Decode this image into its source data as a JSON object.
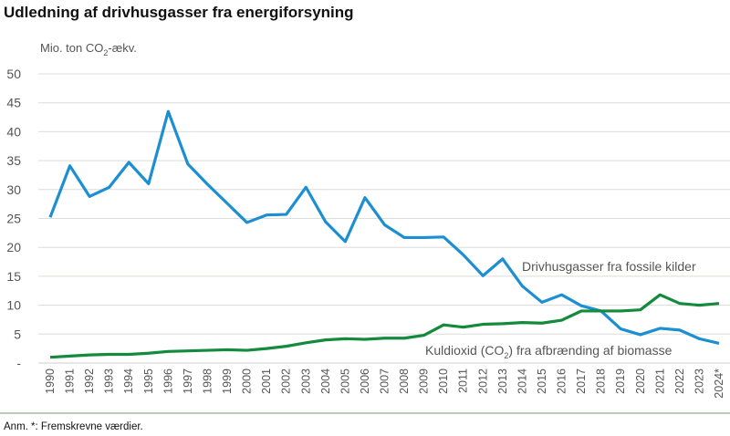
{
  "chart_data": {
    "type": "line",
    "title": "Udledning af drivhusgasser fra energiforsyning",
    "ylabel_main": "Mio. ton CO",
    "ylabel_sub": "2",
    "ylabel_tail": "-ækv.",
    "ylim": [
      0,
      50
    ],
    "yticks": [
      {
        "v": 0,
        "label": "-"
      },
      {
        "v": 5,
        "label": "5"
      },
      {
        "v": 10,
        "label": "10"
      },
      {
        "v": 15,
        "label": "15"
      },
      {
        "v": 20,
        "label": "20"
      },
      {
        "v": 25,
        "label": "25"
      },
      {
        "v": 30,
        "label": "30"
      },
      {
        "v": 35,
        "label": "35"
      },
      {
        "v": 40,
        "label": "40"
      },
      {
        "v": 45,
        "label": "45"
      },
      {
        "v": 50,
        "label": "50"
      }
    ],
    "grid": true,
    "categories": [
      "1990",
      "1991",
      "1992",
      "1993",
      "1994",
      "1995",
      "1996",
      "1997",
      "1998",
      "1999",
      "2000",
      "2001",
      "2002",
      "2003",
      "2004",
      "2005",
      "2006",
      "2007",
      "2008",
      "2009",
      "2010",
      "2011",
      "2012",
      "2013",
      "2014",
      "2015",
      "2016",
      "2017",
      "2018",
      "2019",
      "2020",
      "2021",
      "2022",
      "2023",
      "2024*"
    ],
    "series": [
      {
        "name": "Drivhusgasser fra fossile kilder",
        "color": "#1b8fd2",
        "values": [
          25.2,
          34.1,
          28.8,
          30.4,
          34.7,
          31.0,
          43.5,
          34.4,
          30.9,
          27.6,
          24.3,
          25.6,
          25.7,
          30.4,
          24.4,
          21.0,
          28.6,
          23.9,
          21.7,
          21.7,
          21.8,
          18.7,
          15.1,
          18.0,
          13.3,
          10.5,
          11.8,
          9.9,
          9.0,
          5.9,
          4.9,
          6.0,
          5.7,
          4.2,
          3.4
        ]
      },
      {
        "name": "Kuldioxid (CO2) fra afbrænding af biomasse",
        "label_pre": "Kuldioxid (CO",
        "label_sub": "2",
        "label_post": ") fra afbrænding af biomasse",
        "color": "#138a3c",
        "values": [
          1.0,
          1.2,
          1.4,
          1.5,
          1.5,
          1.7,
          2.0,
          2.1,
          2.2,
          2.3,
          2.2,
          2.5,
          2.9,
          3.5,
          4.0,
          4.2,
          4.1,
          4.3,
          4.3,
          4.8,
          6.6,
          6.2,
          6.7,
          6.8,
          7.0,
          6.9,
          7.4,
          9.0,
          9.0,
          9.0,
          9.2,
          11.8,
          10.3,
          10.0,
          10.3
        ]
      }
    ]
  },
  "footnote": "Anm. *: Fremskrevne værdier."
}
